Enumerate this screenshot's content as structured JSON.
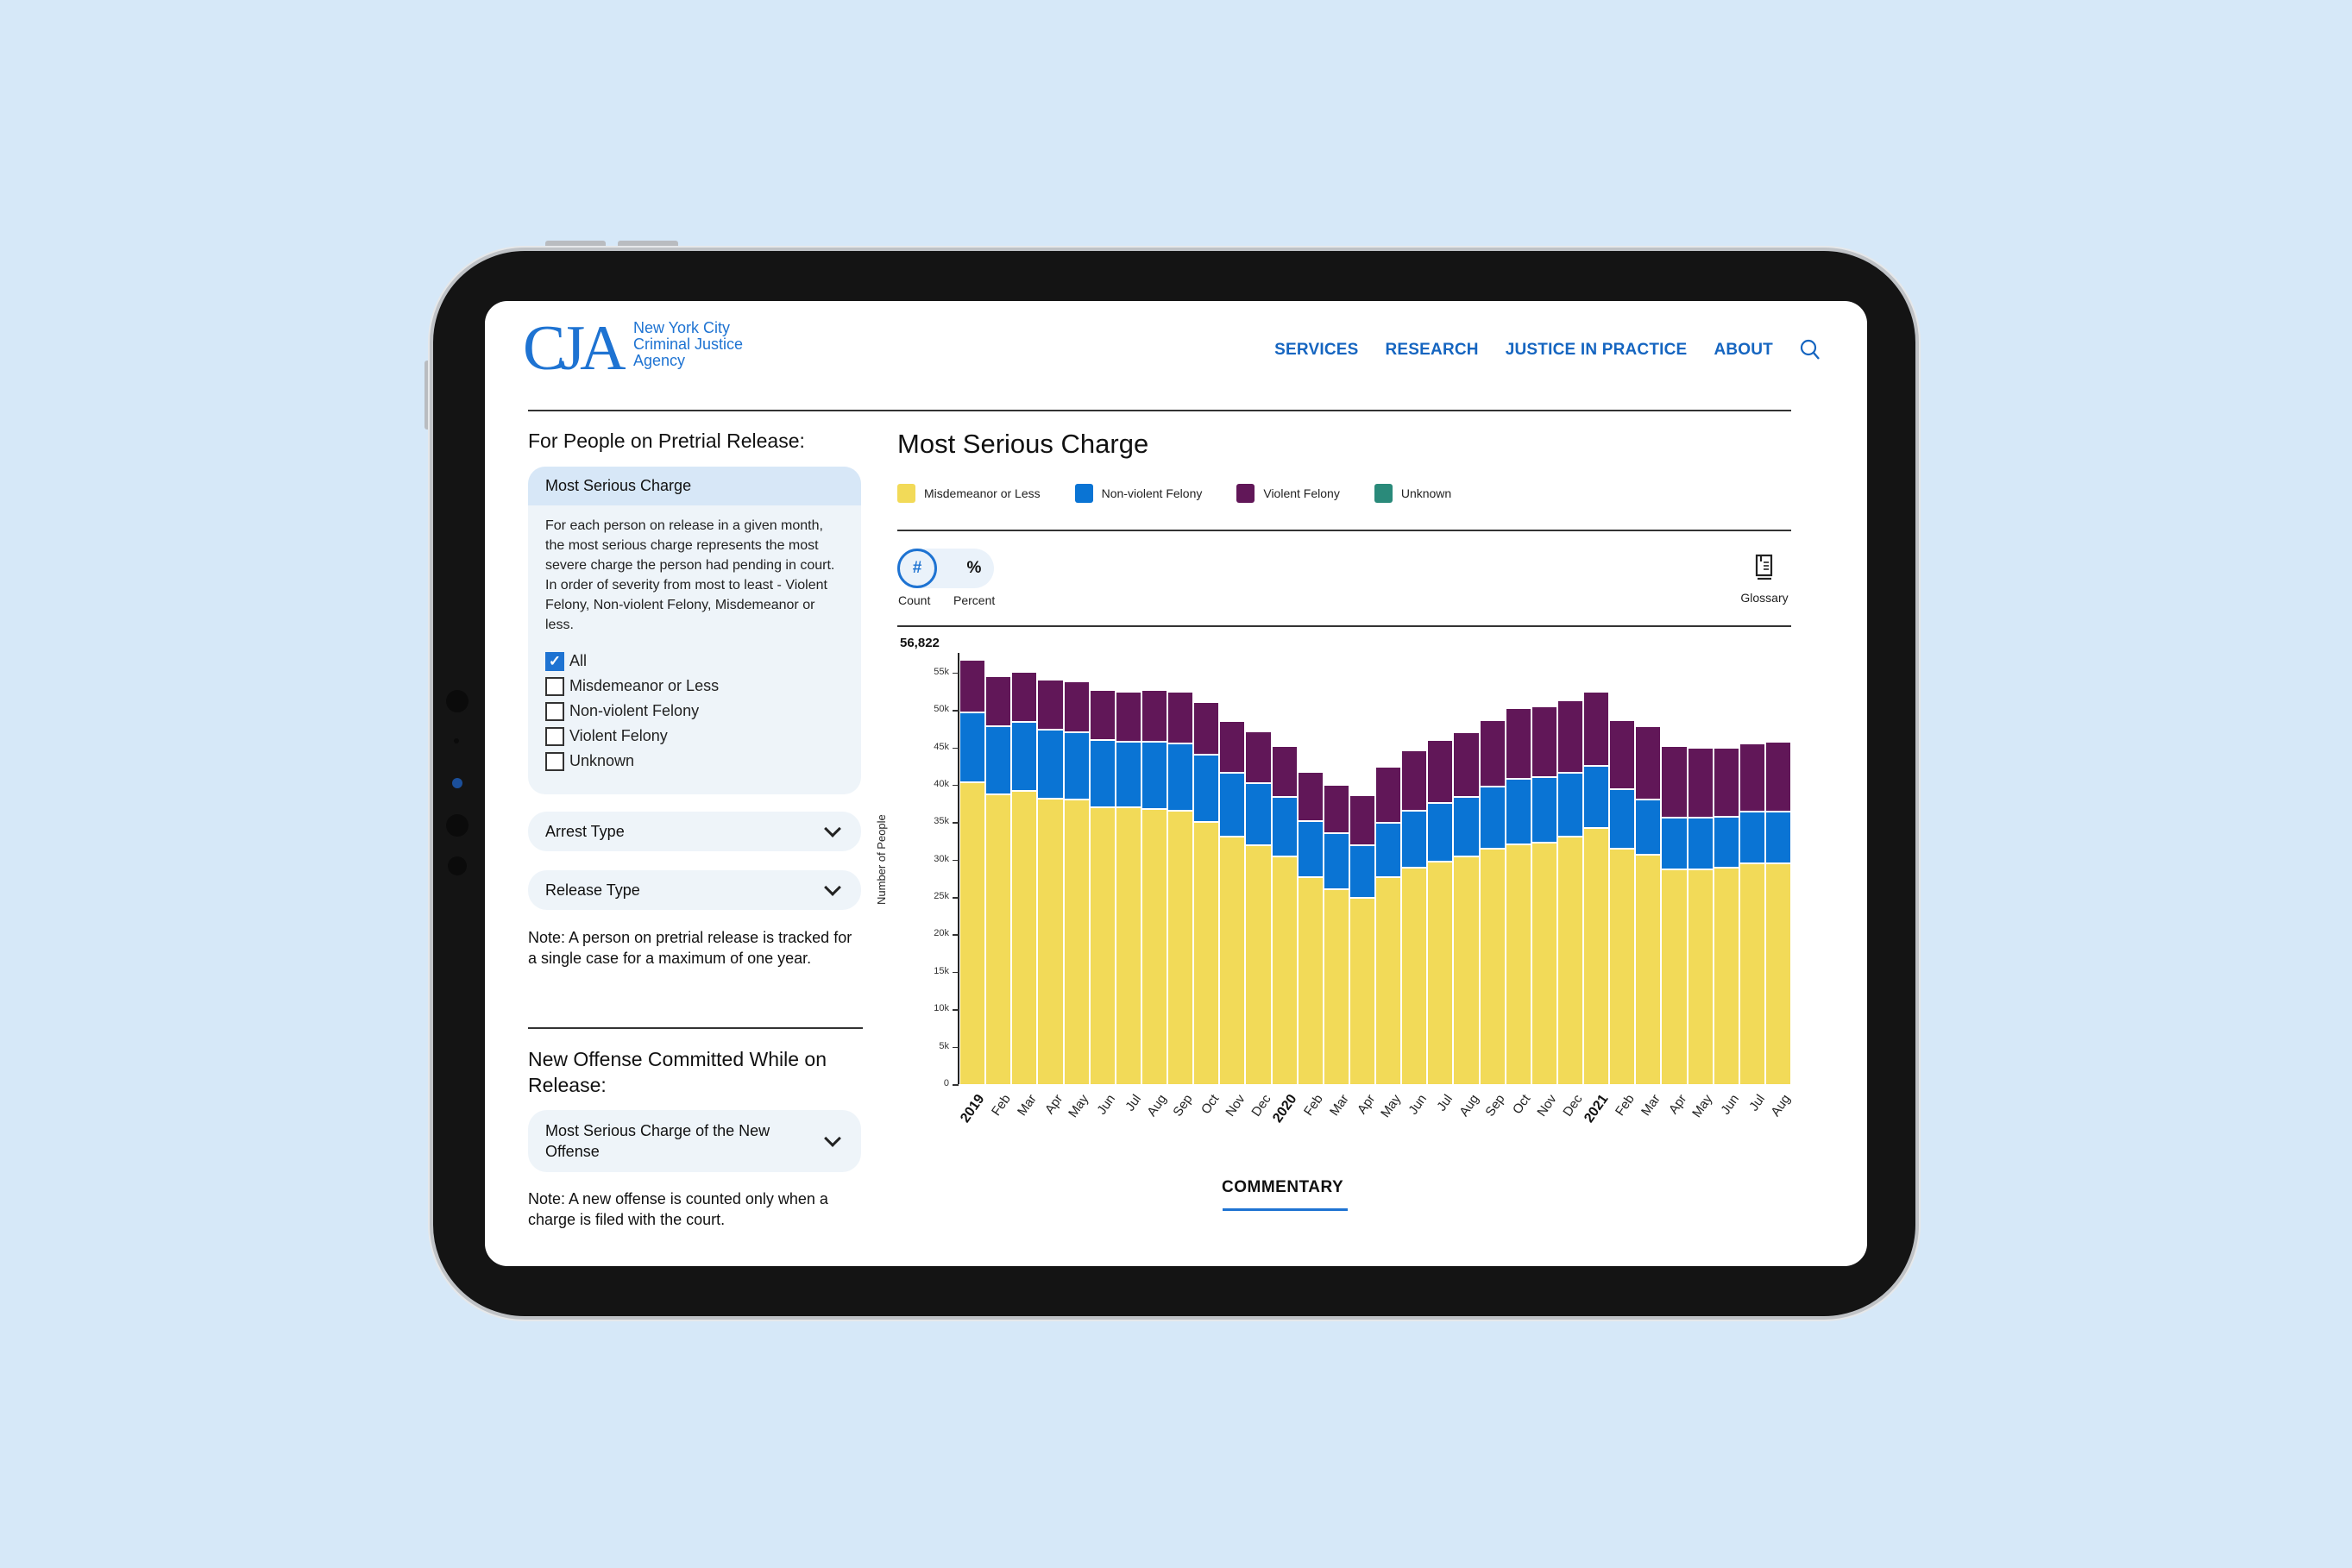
{
  "header": {
    "logo_mark": "CJA",
    "logo_text": [
      "New York City",
      "Criminal Justice",
      "Agency"
    ],
    "nav": [
      "SERVICES",
      "RESEARCH",
      "JUSTICE IN PRACTICE",
      "ABOUT"
    ],
    "search_icon": "search-icon"
  },
  "sidebar": {
    "section1_title": "For People on Pretrial Release:",
    "charge_panel": {
      "title": "Most Serious Charge",
      "description": "For each person on release in a given month, the most serious charge represents the most severe charge the person had pending in court. In order of severity from most to least - Violent Felony, Non-violent Felony, Misdemeanor or less.",
      "options": [
        {
          "label": "All",
          "checked": true
        },
        {
          "label": "Misdemeanor or Less",
          "checked": false
        },
        {
          "label": "Non-violent Felony",
          "checked": false
        },
        {
          "label": "Violent Felony",
          "checked": false
        },
        {
          "label": "Unknown",
          "checked": false
        }
      ]
    },
    "arrest_type": "Arrest Type",
    "release_type": "Release Type",
    "note1": "Note: A person on pretrial release is tracked for a single case for a maximum of one year.",
    "section2_title": "New Offense Committed While on Release:",
    "new_offense_dropdown": "Most Serious Charge of the New Offense",
    "note2": "Note: A new offense is counted only when a charge is filed with the court."
  },
  "main": {
    "title": "Most Serious Charge",
    "toggle": {
      "count_symbol": "#",
      "percent_symbol": "%",
      "count_label": "Count",
      "percent_label": "Percent",
      "selected": "Count"
    },
    "glossary_label": "Glossary",
    "max_label": "56,822",
    "commentary_tab": "COMMENTARY"
  },
  "colors": {
    "misdemeanor": "#f2da58",
    "nonviolent": "#0a74d4",
    "violent": "#611758",
    "unknown": "#2a8a7a",
    "accent": "#1e73d2"
  },
  "chart_data": {
    "type": "bar",
    "stacked": true,
    "title": "Most Serious Charge",
    "xlabel": "",
    "ylabel": "Number of People",
    "ylim": [
      0,
      56822
    ],
    "yticks": [
      "0",
      "5k",
      "10k",
      "15k",
      "20k",
      "25k",
      "30k",
      "35k",
      "40k",
      "45k",
      "50k",
      "55k"
    ],
    "annotation": "56,822",
    "legend": [
      "Misdemeanor or Less",
      "Non-violent Felony",
      "Violent Felony",
      "Unknown"
    ],
    "legend_position": "top",
    "categories": [
      "2019",
      "Feb",
      "Mar",
      "Apr",
      "May",
      "Jun",
      "Jul",
      "Aug",
      "Sep",
      "Oct",
      "Nov",
      "Dec",
      "2020",
      "Feb",
      "Mar",
      "Apr",
      "May",
      "Jun",
      "Jul",
      "Aug",
      "Sep",
      "Oct",
      "Nov",
      "Dec",
      "2021",
      "Feb",
      "Mar",
      "Apr",
      "May",
      "Jun",
      "Jul",
      "Aug"
    ],
    "year_labels": [
      "2019",
      "2020",
      "2021"
    ],
    "series": [
      {
        "name": "Misdemeanor or Less",
        "values": [
          40500,
          38900,
          39300,
          38300,
          38100,
          37100,
          37100,
          36900,
          36700,
          35100,
          33200,
          32000,
          30600,
          27800,
          26200,
          25000,
          27800,
          29000,
          29800,
          30600,
          31600,
          32200,
          32400,
          33200,
          34400,
          31600,
          30800,
          28800,
          28800,
          29000,
          29600,
          29600
        ]
      },
      {
        "name": "Non-violent Felony",
        "values": [
          9300,
          9000,
          9200,
          9200,
          9000,
          9000,
          8800,
          9000,
          9000,
          9000,
          8500,
          8300,
          7900,
          7500,
          7400,
          7000,
          7200,
          7700,
          7900,
          7900,
          8300,
          8700,
          8700,
          8500,
          8300,
          7900,
          7300,
          6900,
          6900,
          6900,
          6900,
          6900
        ]
      },
      {
        "name": "Violent Felony",
        "values": [
          7022,
          6700,
          6700,
          6700,
          6900,
          6700,
          6700,
          6900,
          6900,
          7100,
          7000,
          7000,
          6800,
          6600,
          6500,
          6700,
          7500,
          8000,
          8400,
          8600,
          8900,
          9500,
          9500,
          9700,
          9900,
          9300,
          9800,
          9600,
          9400,
          9200,
          9200,
          9400
        ]
      },
      {
        "name": "Unknown",
        "values": [
          0,
          0,
          0,
          0,
          0,
          0,
          0,
          0,
          0,
          0,
          0,
          0,
          0,
          0,
          0,
          0,
          0,
          0,
          0,
          0,
          0,
          0,
          0,
          0,
          0,
          0,
          0,
          0,
          0,
          0,
          0,
          0
        ]
      }
    ],
    "grid": false
  }
}
